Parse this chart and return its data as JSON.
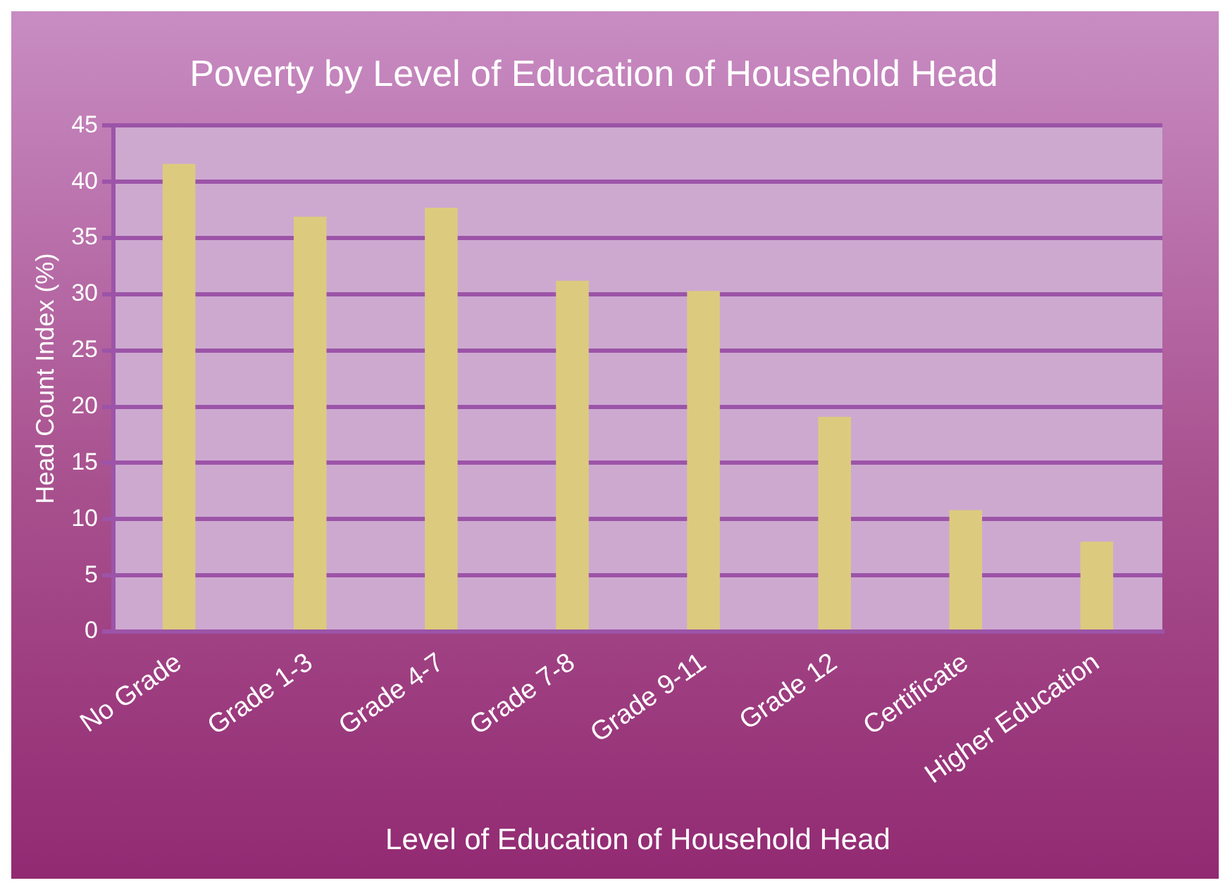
{
  "chart_data": {
    "type": "bar",
    "title": "Poverty by Level of Education of Household Head",
    "xlabel": "Level of Education of Household Head",
    "ylabel": "Head Count Index (%)",
    "categories": [
      "No Grade",
      "Grade 1-3",
      "Grade 4-7",
      "Grade 7-8",
      "Grade 9-11",
      "Grade 12",
      "Certificate",
      "Higher Education"
    ],
    "values": [
      41.6,
      36.9,
      37.7,
      31.2,
      30.3,
      19.1,
      10.8,
      8.0
    ],
    "color": "#dccb7e",
    "ylim": [
      0,
      45
    ],
    "yticks": [
      0,
      5,
      10,
      15,
      20,
      25,
      30,
      35,
      40,
      45
    ],
    "grid": "y",
    "legend": false
  }
}
